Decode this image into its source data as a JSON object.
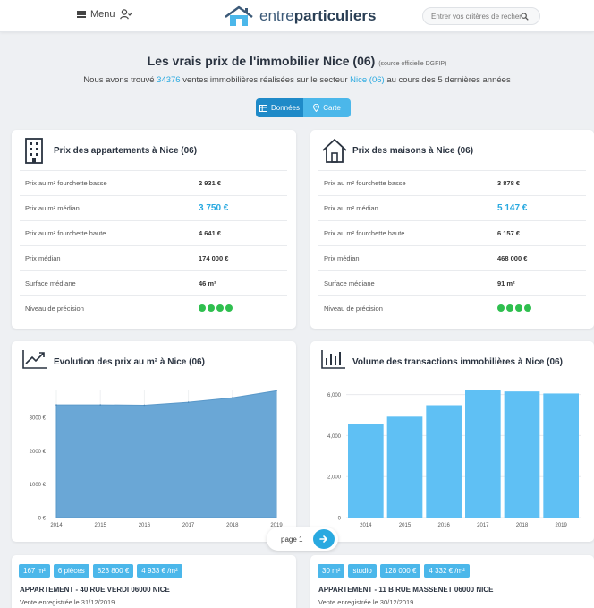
{
  "header": {
    "menu_label": "Menu",
    "logo_light": "entre",
    "logo_bold": "particuliers",
    "search_placeholder": "Entrer vos critères de recherche"
  },
  "title": {
    "main": "Les vrais prix de l'immobilier Nice (06)",
    "source": "(source officielle DGFIP)"
  },
  "subtitle": {
    "prefix": "Nous avons trouvé",
    "count": "34376",
    "middle": "ventes immobilières réalisées sur le secteur",
    "sector": "Nice (06)",
    "suffix": "au cours des 5 dernières années"
  },
  "toggle": {
    "data_label": "Données",
    "map_label": "Carte"
  },
  "apartments": {
    "title": "Prix des appartements à Nice (06)",
    "rows": [
      {
        "label": "Prix au m² fourchette basse",
        "value": "2 931 €"
      },
      {
        "label": "Prix au m² médian",
        "value": "3 750 €"
      },
      {
        "label": "Prix au m² fourchette haute",
        "value": "4 641 €"
      },
      {
        "label": "Prix médian",
        "value": "174 000 €"
      },
      {
        "label": "Surface médiane",
        "value": "46 m²"
      },
      {
        "label": "Niveau de précision",
        "value": ""
      }
    ],
    "precision_level": 4
  },
  "houses": {
    "title": "Prix des maisons à Nice (06)",
    "rows": [
      {
        "label": "Prix au m² fourchette basse",
        "value": "3 878 €"
      },
      {
        "label": "Prix au m² médian",
        "value": "5 147 €"
      },
      {
        "label": "Prix au m² fourchette haute",
        "value": "6 157 €"
      },
      {
        "label": "Prix médian",
        "value": "468 000 €"
      },
      {
        "label": "Surface médiane",
        "value": "91 m²"
      },
      {
        "label": "Niveau de précision",
        "value": ""
      }
    ],
    "precision_level": 4
  },
  "chart_data": [
    {
      "type": "area",
      "title": "Evolution des prix au m² à Nice (06)",
      "x": [
        "2014",
        "2015",
        "2016",
        "2017",
        "2018",
        "2019"
      ],
      "values": [
        3370,
        3370,
        3360,
        3450,
        3580,
        3790
      ],
      "ytick_labels": [
        "0 €",
        "1000 €",
        "2000 €",
        "3000 €"
      ],
      "ylim": [
        0,
        3800
      ],
      "color": "#6aa7d6",
      "grid": true
    },
    {
      "type": "bar",
      "title": "Volume des transactions immobilières à Nice (06)",
      "categories": [
        "2014",
        "2015",
        "2016",
        "2017",
        "2018",
        "2019"
      ],
      "values": [
        4550,
        4920,
        5480,
        6200,
        6150,
        6050
      ],
      "ytick_labels": [
        "0",
        "2,000",
        "4,000",
        "6,000"
      ],
      "ylim": [
        0,
        6200
      ],
      "color": "#5fc0f4",
      "grid": true
    }
  ],
  "pager": {
    "label": "page 1"
  },
  "listings": [
    {
      "tags": [
        "167 m²",
        "6 pièces",
        "823 800 €",
        "4 933 € /m²"
      ],
      "address": "APPARTEMENT - 40 RUE VERDI 06000 NICE",
      "sold": "Vente enregistrée le 31/12/2019"
    },
    {
      "tags": [
        "30 m²",
        "studio",
        "128 000 €",
        "4 332 € /m²"
      ],
      "address": "APPARTEMENT - 11 B RUE MASSENET 06000 NICE",
      "sold": "Vente enregistrée le 30/12/2019"
    }
  ]
}
